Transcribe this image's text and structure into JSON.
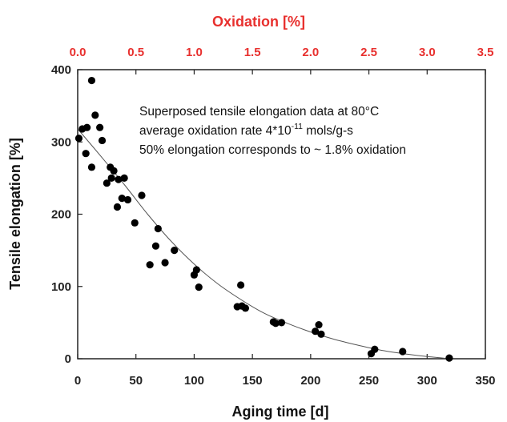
{
  "colors": {
    "top_axis": "#e8302e",
    "axes": "#222222",
    "points": "#000000",
    "curve": "#555555"
  },
  "chart_data": {
    "type": "scatter",
    "xlabel": "Aging time [d]",
    "ylabel": "Tensile elongation [%]",
    "x2label": "Oxidation [%]",
    "xlim": [
      0,
      350
    ],
    "ylim": [
      0,
      400
    ],
    "x2lim": [
      0,
      3.5
    ],
    "xticks": [
      "0",
      "50",
      "100",
      "150",
      "200",
      "250",
      "300",
      "350"
    ],
    "yticks": [
      "0",
      "100",
      "200",
      "300",
      "400"
    ],
    "x2ticks": [
      "0.0",
      "0.5",
      "1.0",
      "1.5",
      "2.0",
      "2.5",
      "3.0",
      "3.5"
    ],
    "grid": false,
    "annotation_lines": [
      {
        "pre": "Superposed tensile elongation data at 80°C",
        "sup": "",
        "post": ""
      },
      {
        "pre": "average oxidation rate 4*10",
        "sup": "-11",
        "post": " mols/g-s"
      },
      {
        "pre": "50% elongation corresponds to ~ 1.8% oxidation",
        "sup": "",
        "post": ""
      }
    ],
    "series": [
      {
        "points": [
          [
            1,
            305
          ],
          [
            4,
            318
          ],
          [
            8,
            320
          ],
          [
            7,
            284
          ],
          [
            12,
            265
          ],
          [
            12,
            385
          ],
          [
            15,
            337
          ],
          [
            19,
            320
          ],
          [
            21,
            302
          ],
          [
            25,
            243
          ],
          [
            28,
            265
          ],
          [
            29,
            250
          ],
          [
            31,
            260
          ],
          [
            34,
            210
          ],
          [
            35,
            248
          ],
          [
            38,
            222
          ],
          [
            40,
            250
          ],
          [
            43,
            220
          ],
          [
            49,
            188
          ],
          [
            55,
            226
          ],
          [
            62,
            130
          ],
          [
            67,
            156
          ],
          [
            69,
            180
          ],
          [
            75,
            133
          ],
          [
            83,
            150
          ],
          [
            100,
            116
          ],
          [
            102,
            123
          ],
          [
            104,
            99
          ],
          [
            137,
            72
          ],
          [
            140,
            102
          ],
          [
            141,
            73
          ],
          [
            144,
            70
          ],
          [
            168,
            51
          ],
          [
            170,
            49
          ],
          [
            175,
            50
          ],
          [
            204,
            38
          ],
          [
            207,
            47
          ],
          [
            209,
            34
          ],
          [
            252,
            7
          ],
          [
            255,
            13
          ],
          [
            279,
            10
          ],
          [
            319,
            1
          ]
        ]
      }
    ],
    "fit_curve": {
      "x": [
        0,
        20,
        40,
        60,
        80,
        100,
        120,
        140,
        160,
        180,
        200,
        220,
        240,
        260,
        280,
        300,
        320
      ],
      "y": [
        318,
        280,
        241,
        200,
        163,
        131,
        104,
        82,
        63,
        49,
        37,
        27,
        19,
        12,
        7,
        3,
        0
      ]
    }
  }
}
